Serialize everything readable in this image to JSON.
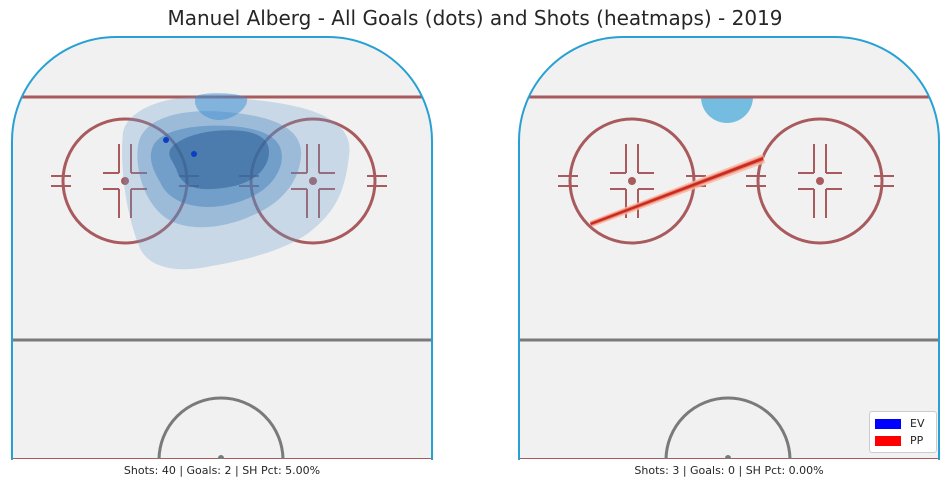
{
  "title": "Manuel Alberg - All Goals (dots) and Shots (heatmaps) - 2019",
  "colors": {
    "rink_fill": "#f1f1f1",
    "boards": "#27a1d4",
    "red_line": "#a85a5d",
    "gray_line": "#7a7a7a",
    "ev": "#0000ff",
    "pp": "#ff0000"
  },
  "chart_data": [
    {
      "type": "scatter",
      "panel": "left",
      "title": "",
      "xlabel": "Shots: 40 | Goals: 2 | SH Pct: 5.00%",
      "ylabel": "",
      "density": "kde-heatmap-blues",
      "goals": [
        {
          "x": 43,
          "y": 76,
          "strength": "EV"
        },
        {
          "x": 51,
          "y": 82,
          "strength": "EV"
        }
      ],
      "shot_density_peak": {
        "x": 52,
        "y": 80
      },
      "stats": {
        "shots": 40,
        "goals": 2,
        "sh_pct": "5.00%"
      }
    },
    {
      "type": "scatter",
      "panel": "right",
      "title": "",
      "xlabel": "Shots: 3 | Goals: 0 | SH Pct: 0.00%",
      "ylabel": "",
      "density": "kde-heatmap-reds",
      "goals": [],
      "stats": {
        "shots": 3,
        "goals": 0,
        "sh_pct": "0.00%"
      }
    }
  ],
  "legend": {
    "placement": "lower-right",
    "items": [
      {
        "label": "EV",
        "color": "#0000ff"
      },
      {
        "label": "PP",
        "color": "#ff0000"
      }
    ]
  }
}
